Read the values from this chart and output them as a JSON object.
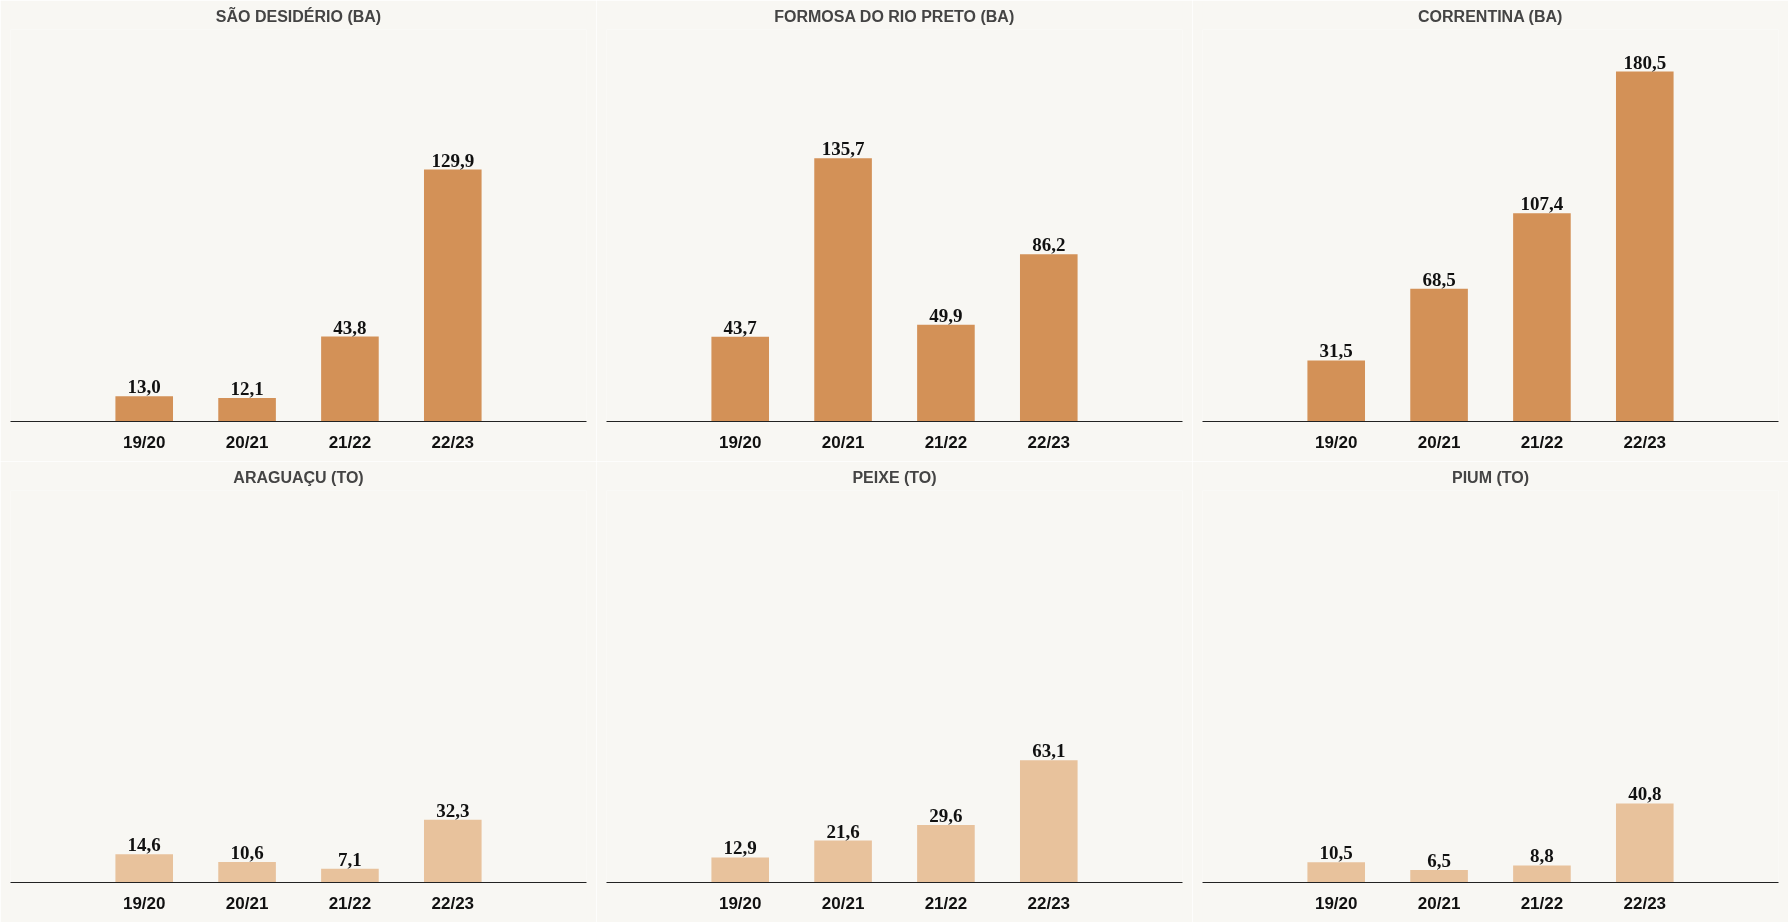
{
  "chart_data": [
    {
      "type": "bar",
      "title": "SÃO DESIDÉRIO (BA)",
      "categories": [
        "19/20",
        "20/21",
        "21/22",
        "22/23"
      ],
      "values": [
        13.0,
        12.1,
        43.8,
        129.9
      ],
      "value_labels": [
        "13,0",
        "12,1",
        "43,8",
        "129,9"
      ],
      "color": "#d39157",
      "grid": false,
      "legend": false
    },
    {
      "type": "bar",
      "title": "FORMOSA DO RIO PRETO (BA)",
      "categories": [
        "19/20",
        "20/21",
        "21/22",
        "22/23"
      ],
      "values": [
        43.7,
        135.7,
        49.9,
        86.2
      ],
      "value_labels": [
        "43,7",
        "135,7",
        "49,9",
        "86,2"
      ],
      "color": "#d39157",
      "grid": false,
      "legend": false
    },
    {
      "type": "bar",
      "title": "CORRENTINA (BA)",
      "categories": [
        "19/20",
        "20/21",
        "21/22",
        "22/23"
      ],
      "values": [
        31.5,
        68.5,
        107.4,
        180.5
      ],
      "value_labels": [
        "31,5",
        "68,5",
        "107,4",
        "180,5"
      ],
      "color": "#d39157",
      "grid": false,
      "legend": false
    },
    {
      "type": "bar",
      "title": "ARAGUAÇU (TO)",
      "categories": [
        "19/20",
        "20/21",
        "21/22",
        "22/23"
      ],
      "values": [
        14.6,
        10.6,
        7.1,
        32.3
      ],
      "value_labels": [
        "14,6",
        "10,6",
        "7,1",
        "32,3"
      ],
      "color": "#e8c29c",
      "grid": false,
      "legend": false
    },
    {
      "type": "bar",
      "title": "PEIXE (TO)",
      "categories": [
        "19/20",
        "20/21",
        "21/22",
        "22/23"
      ],
      "values": [
        12.9,
        21.6,
        29.6,
        63.1
      ],
      "value_labels": [
        "12,9",
        "21,6",
        "29,6",
        "63,1"
      ],
      "color": "#e8c29c",
      "grid": false,
      "legend": false
    },
    {
      "type": "bar",
      "title": "PIUM (TO)",
      "categories": [
        "19/20",
        "20/21",
        "21/22",
        "22/23"
      ],
      "values": [
        10.5,
        6.5,
        8.8,
        40.8
      ],
      "value_labels": [
        "10,5",
        "6,5",
        "8,8",
        "40,8"
      ],
      "color": "#e8c29c",
      "grid": false,
      "legend": false
    }
  ]
}
